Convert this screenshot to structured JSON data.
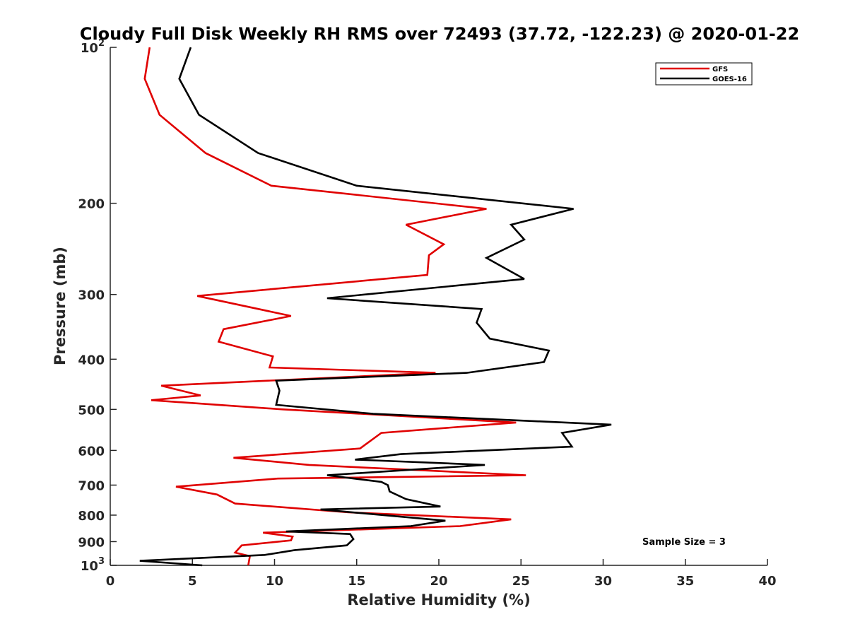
{
  "chart_data": {
    "type": "line",
    "title": "Cloudy Full Disk Weekly RH RMS over 72493 (37.72, -122.23) @ 2020-01-22",
    "xlabel": "Relative Humidity (%)",
    "ylabel": "Pressure (mb)",
    "xlim": [
      0,
      40
    ],
    "ylim": [
      100,
      1000
    ],
    "y_scale": "log",
    "y_reversed": true,
    "grid": false,
    "legend_position": "top-right",
    "annotation": "Sample Size = 3",
    "x_ticks": [
      "0",
      "5",
      "10",
      "15",
      "20",
      "25",
      "30",
      "35",
      "40"
    ],
    "y_ticks": [
      {
        "value": 100,
        "base": "10",
        "exp": "2",
        "label": ""
      },
      {
        "value": 200,
        "label": "200"
      },
      {
        "value": 300,
        "label": "300"
      },
      {
        "value": 400,
        "label": "400"
      },
      {
        "value": 500,
        "label": "500"
      },
      {
        "value": 600,
        "label": "600"
      },
      {
        "value": 700,
        "label": "700"
      },
      {
        "value": 800,
        "label": "800"
      },
      {
        "value": 900,
        "label": "900"
      },
      {
        "value": 1000,
        "base": "10",
        "exp": "3",
        "label": ""
      }
    ],
    "series": [
      {
        "name": "GFS",
        "color": "#e00000",
        "points": [
          [
            2.4,
            100
          ],
          [
            2.1,
            115
          ],
          [
            3.0,
            135
          ],
          [
            5.8,
            160
          ],
          [
            9.8,
            185
          ],
          [
            22.9,
            205
          ],
          [
            18.0,
            220
          ],
          [
            20.3,
            240
          ],
          [
            19.4,
            252
          ],
          [
            19.3,
            275
          ],
          [
            5.3,
            302
          ],
          [
            11.0,
            330
          ],
          [
            6.9,
            350
          ],
          [
            6.6,
            370
          ],
          [
            9.9,
            395
          ],
          [
            9.7,
            415
          ],
          [
            19.8,
            425
          ],
          [
            3.1,
            450
          ],
          [
            5.5,
            470
          ],
          [
            2.5,
            480
          ],
          [
            10.5,
            500
          ],
          [
            24.7,
            530
          ],
          [
            16.5,
            555
          ],
          [
            15.2,
            595
          ],
          [
            7.5,
            620
          ],
          [
            12.1,
            640
          ],
          [
            25.3,
            670
          ],
          [
            10.2,
            680
          ],
          [
            4.0,
            705
          ],
          [
            6.5,
            730
          ],
          [
            7.6,
            760
          ],
          [
            14.5,
            790
          ],
          [
            24.4,
            815
          ],
          [
            21.3,
            840
          ],
          [
            9.3,
            865
          ],
          [
            11.1,
            880
          ],
          [
            11.0,
            895
          ],
          [
            8.0,
            915
          ],
          [
            7.6,
            945
          ],
          [
            8.5,
            960
          ],
          [
            8.4,
            1000
          ]
        ]
      },
      {
        "name": "GOES-16",
        "color": "#000000",
        "points": [
          [
            4.9,
            100
          ],
          [
            4.2,
            115
          ],
          [
            5.4,
            135
          ],
          [
            9.0,
            160
          ],
          [
            15.0,
            185
          ],
          [
            28.2,
            205
          ],
          [
            24.4,
            220
          ],
          [
            25.2,
            235
          ],
          [
            22.9,
            255
          ],
          [
            25.2,
            280
          ],
          [
            13.2,
            305
          ],
          [
            22.6,
            320
          ],
          [
            22.3,
            340
          ],
          [
            23.1,
            365
          ],
          [
            26.7,
            385
          ],
          [
            26.4,
            405
          ],
          [
            21.7,
            425
          ],
          [
            10.1,
            440
          ],
          [
            10.3,
            460
          ],
          [
            10.1,
            490
          ],
          [
            16.0,
            510
          ],
          [
            30.5,
            535
          ],
          [
            27.5,
            555
          ],
          [
            28.1,
            590
          ],
          [
            17.7,
            610
          ],
          [
            14.9,
            625
          ],
          [
            22.8,
            640
          ],
          [
            13.2,
            670
          ],
          [
            16.5,
            690
          ],
          [
            16.9,
            700
          ],
          [
            17.0,
            720
          ],
          [
            18.0,
            745
          ],
          [
            20.1,
            770
          ],
          [
            12.8,
            780
          ],
          [
            20.4,
            820
          ],
          [
            18.3,
            840
          ],
          [
            10.7,
            860
          ],
          [
            14.6,
            870
          ],
          [
            14.8,
            890
          ],
          [
            14.4,
            915
          ],
          [
            11.2,
            935
          ],
          [
            9.4,
            955
          ],
          [
            1.8,
            980
          ],
          [
            5.6,
            1000
          ]
        ]
      }
    ]
  }
}
